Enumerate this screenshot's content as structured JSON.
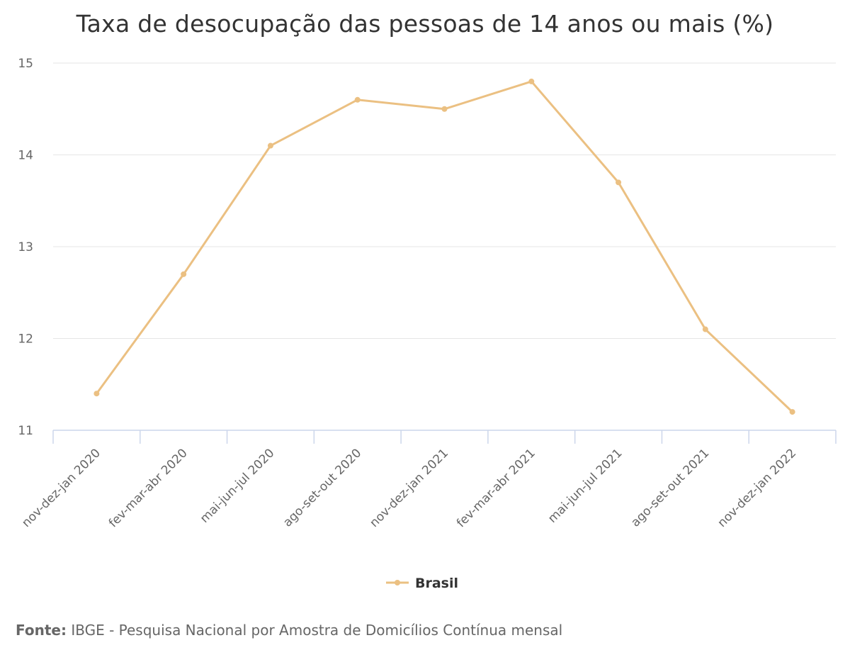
{
  "chart_data": {
    "type": "line",
    "title": "Taxa de desocupação das pessoas de 14 anos ou mais (%)",
    "categories": [
      "nov-dez-jan 2020",
      "fev-mar-abr 2020",
      "mai-jun-jul 2020",
      "ago-set-out 2020",
      "nov-dez-jan 2021",
      "fev-mar-abr 2021",
      "mai-jun-jul 2021",
      "ago-set-out 2021",
      "nov-dez-jan 2022"
    ],
    "series": [
      {
        "name": "Brasil",
        "values": [
          11.4,
          12.7,
          14.1,
          14.6,
          14.5,
          14.8,
          13.7,
          12.1,
          11.2
        ],
        "color": "#EBC082"
      }
    ],
    "ylim": [
      11,
      15
    ],
    "yticks": [
      11,
      12,
      13,
      14,
      15
    ],
    "grid": true,
    "legend": "bottom-center",
    "xlabel": "",
    "ylabel": ""
  },
  "source": {
    "label": "Fonte:",
    "text": "IBGE - Pesquisa Nacional por Amostra de Domicílios Contínua mensal"
  },
  "colors": {
    "grid": "#E6E6E6",
    "axis": "#CCD6EB",
    "tick_text": "#666666"
  }
}
